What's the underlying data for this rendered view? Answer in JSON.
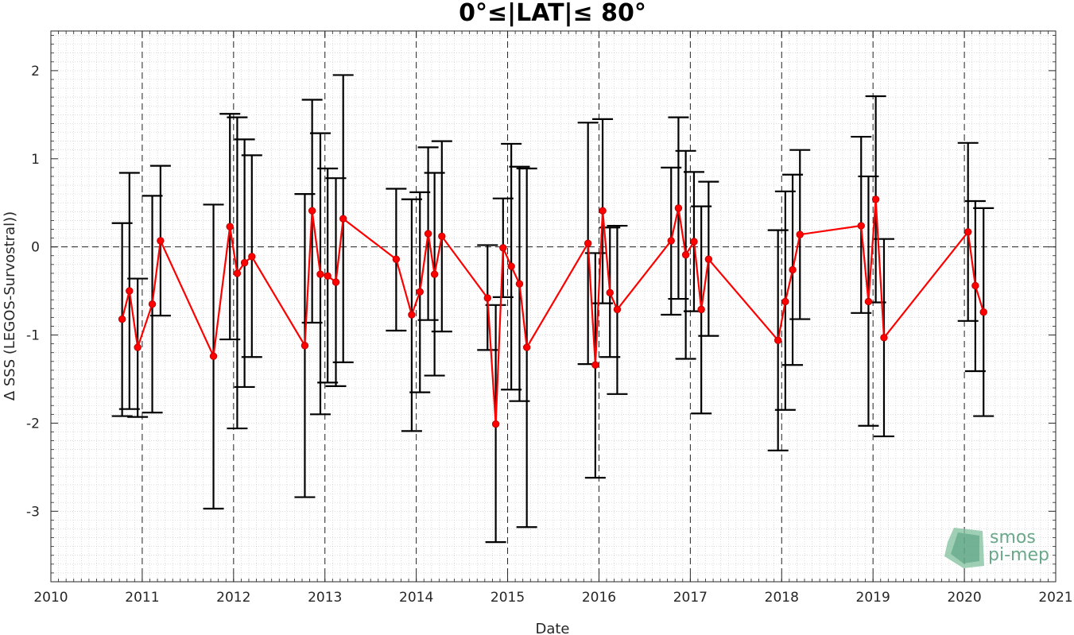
{
  "chart_data": {
    "type": "errorbar-line",
    "title": "0°≤|LAT|≤ 80°",
    "xlabel": "Date",
    "ylabel": "Δ SSS (LEGOS-Survostral))",
    "xlim": [
      2010,
      2021
    ],
    "ylim": [
      -3.8,
      2.45
    ],
    "xticks": [
      2010,
      2011,
      2012,
      2013,
      2014,
      2015,
      2016,
      2017,
      2018,
      2019,
      2020,
      2021
    ],
    "yticks": [
      -3,
      -2,
      -1,
      0,
      1,
      2
    ],
    "grid": "minor-dotted",
    "vlines": [
      2011,
      2012,
      2013,
      2014,
      2015,
      2016,
      2017,
      2018,
      2019,
      2020
    ],
    "hline": 0,
    "series_color": "#ff0000",
    "errorbar_color": "#000000",
    "points": [
      {
        "x": 2010.78,
        "y": -0.82,
        "low": -1.92,
        "high": 0.27
      },
      {
        "x": 2010.86,
        "y": -0.5,
        "low": -1.84,
        "high": 0.84
      },
      {
        "x": 2010.95,
        "y": -1.14,
        "low": -1.93,
        "high": -0.36
      },
      {
        "x": 2011.11,
        "y": -0.65,
        "low": -1.88,
        "high": 0.58
      },
      {
        "x": 2011.2,
        "y": 0.07,
        "low": -0.78,
        "high": 0.92
      },
      {
        "x": 2011.78,
        "y": -1.24,
        "low": -2.97,
        "high": 0.48
      },
      {
        "x": 2011.96,
        "y": 0.23,
        "low": -1.05,
        "high": 1.51
      },
      {
        "x": 2012.04,
        "y": -0.3,
        "low": -2.06,
        "high": 1.47
      },
      {
        "x": 2012.12,
        "y": -0.18,
        "low": -1.59,
        "high": 1.22
      },
      {
        "x": 2012.2,
        "y": -0.11,
        "low": -1.25,
        "high": 1.04
      },
      {
        "x": 2012.78,
        "y": -1.12,
        "low": -2.84,
        "high": 0.6
      },
      {
        "x": 2012.86,
        "y": 0.41,
        "low": -0.86,
        "high": 1.67
      },
      {
        "x": 2012.95,
        "y": -0.31,
        "low": -1.9,
        "high": 1.29
      },
      {
        "x": 2013.03,
        "y": -0.33,
        "low": -1.54,
        "high": 0.89
      },
      {
        "x": 2013.12,
        "y": -0.4,
        "low": -1.58,
        "high": 0.78
      },
      {
        "x": 2013.2,
        "y": 0.32,
        "low": -1.31,
        "high": 1.95
      },
      {
        "x": 2013.78,
        "y": -0.14,
        "low": -0.95,
        "high": 0.66
      },
      {
        "x": 2013.95,
        "y": -0.77,
        "low": -2.09,
        "high": 0.54
      },
      {
        "x": 2014.04,
        "y": -0.51,
        "low": -1.65,
        "high": 0.62
      },
      {
        "x": 2014.13,
        "y": 0.15,
        "low": -0.83,
        "high": 1.13
      },
      {
        "x": 2014.2,
        "y": -0.31,
        "low": -1.46,
        "high": 0.84
      },
      {
        "x": 2014.28,
        "y": 0.12,
        "low": -0.96,
        "high": 1.2
      },
      {
        "x": 2014.78,
        "y": -0.58,
        "low": -1.17,
        "high": 0.02
      },
      {
        "x": 2014.87,
        "y": -2.01,
        "low": -3.35,
        "high": -0.66
      },
      {
        "x": 2014.95,
        "y": -0.01,
        "low": -0.57,
        "high": 0.55
      },
      {
        "x": 2015.04,
        "y": -0.22,
        "low": -1.62,
        "high": 1.17
      },
      {
        "x": 2015.13,
        "y": -0.42,
        "low": -1.75,
        "high": 0.91
      },
      {
        "x": 2015.21,
        "y": -1.14,
        "low": -3.18,
        "high": 0.89
      },
      {
        "x": 2015.88,
        "y": 0.04,
        "low": -1.33,
        "high": 1.41
      },
      {
        "x": 2015.96,
        "y": -1.34,
        "low": -2.62,
        "high": -0.07
      },
      {
        "x": 2016.04,
        "y": 0.41,
        "low": -0.64,
        "high": 1.45
      },
      {
        "x": 2016.12,
        "y": -0.52,
        "low": -1.25,
        "high": 0.22
      },
      {
        "x": 2016.2,
        "y": -0.71,
        "low": -1.67,
        "high": 0.24
      },
      {
        "x": 2016.79,
        "y": 0.07,
        "low": -0.77,
        "high": 0.9
      },
      {
        "x": 2016.87,
        "y": 0.44,
        "low": -0.59,
        "high": 1.47
      },
      {
        "x": 2016.95,
        "y": -0.09,
        "low": -1.27,
        "high": 1.09
      },
      {
        "x": 2017.04,
        "y": 0.06,
        "low": -0.73,
        "high": 0.85
      },
      {
        "x": 2017.12,
        "y": -0.71,
        "low": -1.89,
        "high": 0.46
      },
      {
        "x": 2017.2,
        "y": -0.14,
        "low": -1.01,
        "high": 0.74
      },
      {
        "x": 2017.96,
        "y": -1.06,
        "low": -2.31,
        "high": 0.19
      },
      {
        "x": 2018.04,
        "y": -0.62,
        "low": -1.85,
        "high": 0.63
      },
      {
        "x": 2018.12,
        "y": -0.26,
        "low": -1.34,
        "high": 0.82
      },
      {
        "x": 2018.2,
        "y": 0.14,
        "low": -0.82,
        "high": 1.1
      },
      {
        "x": 2018.87,
        "y": 0.24,
        "low": -0.75,
        "high": 1.25
      },
      {
        "x": 2018.95,
        "y": -0.62,
        "low": -2.03,
        "high": 0.8
      },
      {
        "x": 2019.03,
        "y": 0.54,
        "low": -0.63,
        "high": 1.71
      },
      {
        "x": 2019.12,
        "y": -1.03,
        "low": -2.15,
        "high": 0.09
      },
      {
        "x": 2020.04,
        "y": 0.17,
        "low": -0.84,
        "high": 1.18
      },
      {
        "x": 2020.12,
        "y": -0.44,
        "low": -1.41,
        "high": 0.52
      },
      {
        "x": 2020.21,
        "y": -0.74,
        "low": -1.92,
        "high": 0.44
      }
    ]
  },
  "logo": {
    "line1": "smos",
    "line2": "pi-mep",
    "color": "#6aa88a"
  }
}
